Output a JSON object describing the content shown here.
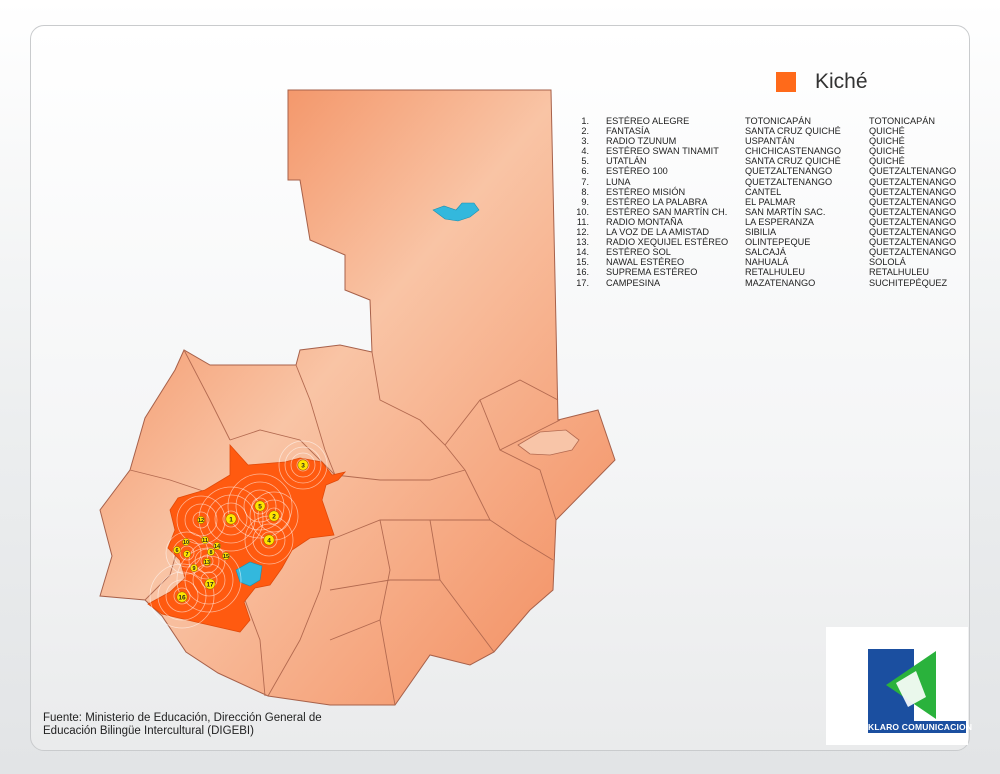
{
  "legend": {
    "label": "Kiché",
    "swatch_color": "#ff6a1a"
  },
  "stations": [
    {
      "num": "1.",
      "name": "ESTÉREO ALEGRE",
      "city": "TOTONICAPÁN",
      "dept": "TOTONICAPÁN"
    },
    {
      "num": "2.",
      "name": "FANTASÍA",
      "city": "SANTA CRUZ QUICHÉ",
      "dept": "QUICHÉ"
    },
    {
      "num": "3.",
      "name": "RADIO TZUNUM",
      "city": "USPANTÁN",
      "dept": "QUICHÉ"
    },
    {
      "num": "4.",
      "name": "ESTÉREO SWAN TINAMIT",
      "city": "CHICHICASTENANGO",
      "dept": "QUICHÉ"
    },
    {
      "num": "5.",
      "name": "UTATLÁN",
      "city": "SANTA CRUZ QUICHÉ",
      "dept": "QUICHÉ"
    },
    {
      "num": "6.",
      "name": "ESTÉREO 100",
      "city": "QUETZALTENANGO",
      "dept": "QUETZALTENANGO"
    },
    {
      "num": "7.",
      "name": "LUNA",
      "city": "QUETZALTENANGO",
      "dept": "QUETZALTENANGO"
    },
    {
      "num": "8.",
      "name": "ESTÉREO MISIÓN",
      "city": "CANTEL",
      "dept": "QUETZALTENANGO"
    },
    {
      "num": "9.",
      "name": "ESTÉREO LA PALABRA",
      "city": "EL PALMAR",
      "dept": "QUETZALTENANGO"
    },
    {
      "num": "10.",
      "name": "ESTÉREO SAN MARTÍN CH.",
      "city": "SAN MARTÍN SAC.",
      "dept": "QUETZALTENANGO"
    },
    {
      "num": "11.",
      "name": "RADIO MONTAÑA",
      "city": "LA ESPERANZA",
      "dept": "QUETZALTENANGO"
    },
    {
      "num": "12.",
      "name": "LA VOZ DE LA AMISTAD",
      "city": "SIBILIA",
      "dept": "QUETZALTENANGO"
    },
    {
      "num": "13.",
      "name": "RADIO XEQUIJEL ESTÉREO",
      "city": "OLINTEPEQUE",
      "dept": "QUETZALTENANGO"
    },
    {
      "num": "14.",
      "name": "ESTÉREO SOL",
      "city": "SALCAJÁ",
      "dept": "QUETZALTENANGO"
    },
    {
      "num": "15.",
      "name": "NAWAL ESTÉREO",
      "city": "NAHUALÁ",
      "dept": "SOLOLÁ"
    },
    {
      "num": "16.",
      "name": "SUPREMA ESTÉREO",
      "city": "RETALHULEU",
      "dept": "RETALHULEU"
    },
    {
      "num": "17.",
      "name": "CAMPESINA",
      "city": "MAZATENANGO",
      "dept": "SUCHITEPÉQUEZ"
    }
  ],
  "markers": [
    "1",
    "2",
    "3",
    "4",
    "5",
    "6",
    "7",
    "8",
    "9",
    "10",
    "11",
    "12",
    "13",
    "14",
    "15",
    "16",
    "17"
  ],
  "source_line1": "Fuente:  Ministerio de Educación, Dirección General de",
  "source_line2": "Educación Bilingüe Intercultural (DIGEBI)",
  "logo": {
    "brand": "KLARO",
    "brand_suffix": "COMUNICACION"
  },
  "colors": {
    "country_light": "#f8b995",
    "country_dark": "#f3895a",
    "kiche_region": "#ff5a10",
    "lake": "#33b8dd",
    "marker": "#ffe500",
    "logo_blue": "#1b4fa0",
    "logo_green": "#2ab23c"
  }
}
